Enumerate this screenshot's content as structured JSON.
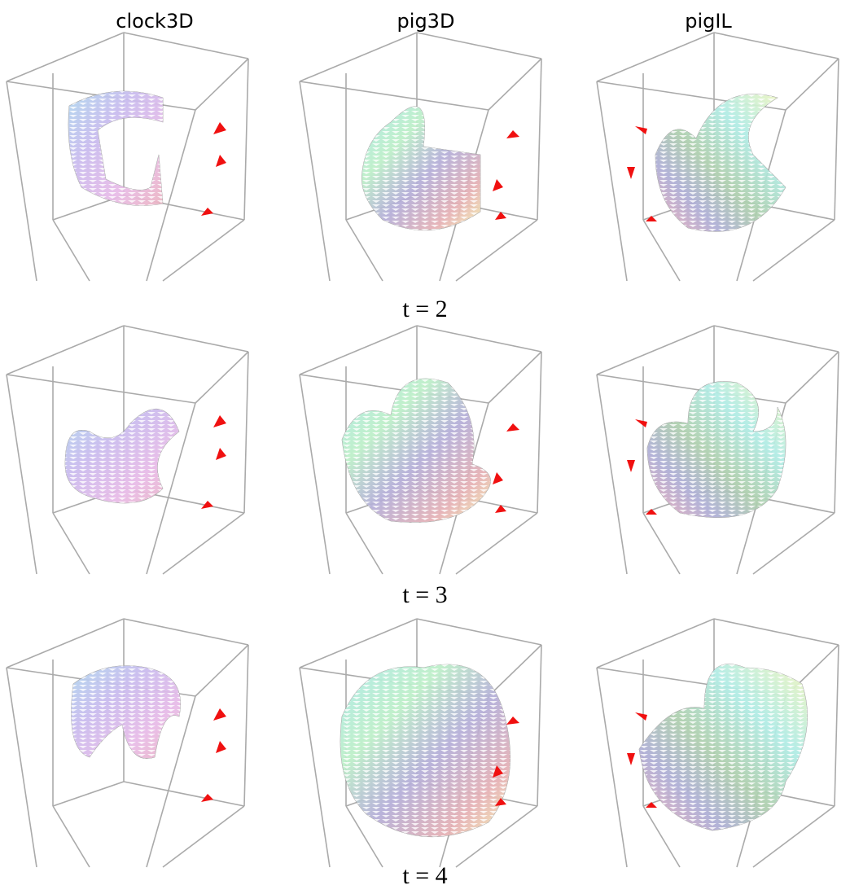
{
  "columns": [
    "clock3D",
    "pig3D",
    "pigIL"
  ],
  "rows": [
    "t = 2",
    "t = 3",
    "t = 4"
  ]
}
